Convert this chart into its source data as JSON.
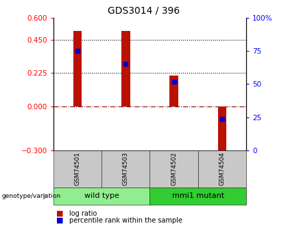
{
  "title": "GDS3014 / 396",
  "samples": [
    "GSM74501",
    "GSM74503",
    "GSM74502",
    "GSM74504"
  ],
  "log_ratio": [
    0.51,
    0.51,
    0.21,
    -0.3
  ],
  "percentile_rank": [
    75,
    65,
    52,
    24
  ],
  "groups": [
    {
      "label": "wild type",
      "samples": [
        0,
        1
      ],
      "color": "#90EE90"
    },
    {
      "label": "mmi1 mutant",
      "samples": [
        2,
        3
      ],
      "color": "#32CD32"
    }
  ],
  "bar_color": "#BB1100",
  "marker_color": "#0000CC",
  "ylim_left": [
    -0.3,
    0.6
  ],
  "yticks_left": [
    -0.3,
    0,
    0.225,
    0.45,
    0.6
  ],
  "ylim_right": [
    0,
    100
  ],
  "yticks_right": [
    0,
    25,
    50,
    75,
    100
  ],
  "ytick_labels_right": [
    "0",
    "25",
    "50",
    "75",
    "100%"
  ],
  "background_color": "#ffffff"
}
